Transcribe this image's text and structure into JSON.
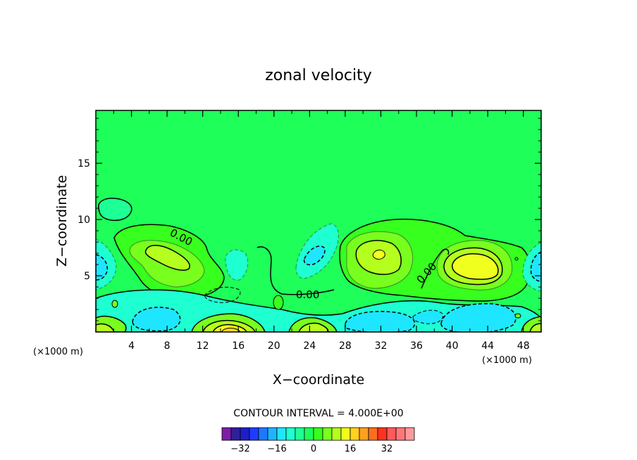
{
  "chart_data": {
    "type": "contour",
    "title": "zonal velocity",
    "xlabel": "X−coordinate",
    "ylabel": "Z−coordinate",
    "x_unit_label": "(×1000 m)",
    "xlim": [
      0,
      50
    ],
    "ylim": [
      0,
      19.7
    ],
    "x_ticks": [
      4,
      8,
      12,
      16,
      20,
      24,
      28,
      32,
      36,
      40,
      44,
      48
    ],
    "y_ticks": [
      5,
      10,
      15
    ],
    "contour_interval_text": "CONTOUR INTERVAL = 4.000E+00",
    "contour_interval": 4,
    "contour_labels": [
      "0.00",
      "0.00",
      "0.00"
    ],
    "colorbar": {
      "colors": [
        "#7d1ea8",
        "#2f1f9a",
        "#1e1ec8",
        "#1e3cff",
        "#1e78ff",
        "#1eb4ff",
        "#1ee6ff",
        "#1effd2",
        "#1eff96",
        "#1eff5a",
        "#37ff1e",
        "#78ff1e",
        "#b4ff1e",
        "#f0ff1e",
        "#ffd21e",
        "#ffa01e",
        "#ff6e1e",
        "#ff321e",
        "#ff5a5a",
        "#ff7878",
        "#ff9a9a"
      ],
      "tick_labels": [
        "−32",
        "−16",
        "0",
        "16",
        "32"
      ],
      "tick_values": [
        -32,
        -16,
        0,
        16,
        32
      ]
    },
    "background_value_color": "#1eff5a",
    "features": [
      {
        "x": 6,
        "z": 5.5,
        "value": 4
      },
      {
        "x": 9,
        "z": 6.8,
        "value": 8
      },
      {
        "x": 31.3,
        "z": 6.4,
        "value": 8
      },
      {
        "x": 32,
        "z": 6.9,
        "value": 12
      },
      {
        "x": 42.4,
        "z": 5.8,
        "value": 12
      },
      {
        "x": 1,
        "z": 6,
        "value": -8
      },
      {
        "x": 29.5,
        "z": 1.5,
        "value": -4
      },
      {
        "x": 44,
        "z": 1.2,
        "value": -12
      },
      {
        "x": 14.9,
        "z": 0.3,
        "value": 16
      },
      {
        "x": 20.4,
        "z": 0.4,
        "value": 8
      }
    ]
  }
}
